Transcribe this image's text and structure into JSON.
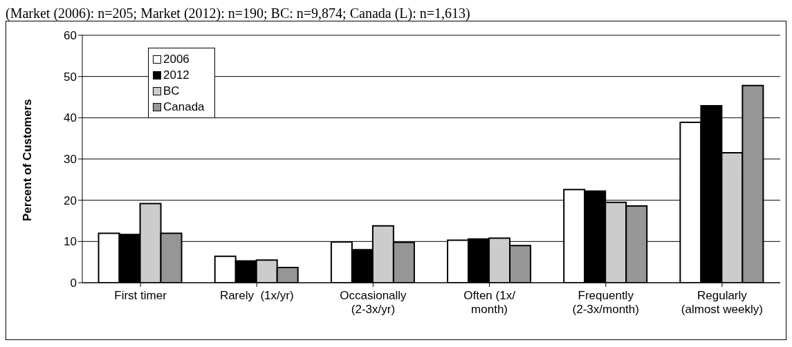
{
  "chart_data": {
    "type": "bar",
    "subtitle": "(Market (2006): n=205; Market (2012): n=190; BC: n=9,874; Canada (L): n=1,613)",
    "ylabel": "Percent of Customers",
    "categories": [
      "First timer",
      "Rarely  (1x/yr)",
      "Occasionally\n(2-3x/yr)",
      "Often (1x/\nmonth)",
      "Frequently\n(2-3x/month)",
      "Regularly\n(almost weekly)"
    ],
    "series": [
      {
        "name": "2006",
        "color": "#ffffff",
        "values": [
          12,
          6.4,
          9.9,
          10.3,
          22.6,
          38.9
        ]
      },
      {
        "name": "2012",
        "color": "#000000",
        "values": [
          11.7,
          5.3,
          8.0,
          10.6,
          22.2,
          42.9
        ]
      },
      {
        "name": "BC",
        "color": "#cccccc",
        "values": [
          19.2,
          5.5,
          13.8,
          10.8,
          19.5,
          31.5
        ]
      },
      {
        "name": "Canada",
        "color": "#969696",
        "values": [
          12,
          3.7,
          9.8,
          9.0,
          18.6,
          47.8
        ]
      }
    ],
    "ylim": [
      0,
      60
    ],
    "yticks": [
      0,
      10,
      20,
      30,
      40,
      50,
      60
    ],
    "grid": "y",
    "legend": "top left"
  }
}
